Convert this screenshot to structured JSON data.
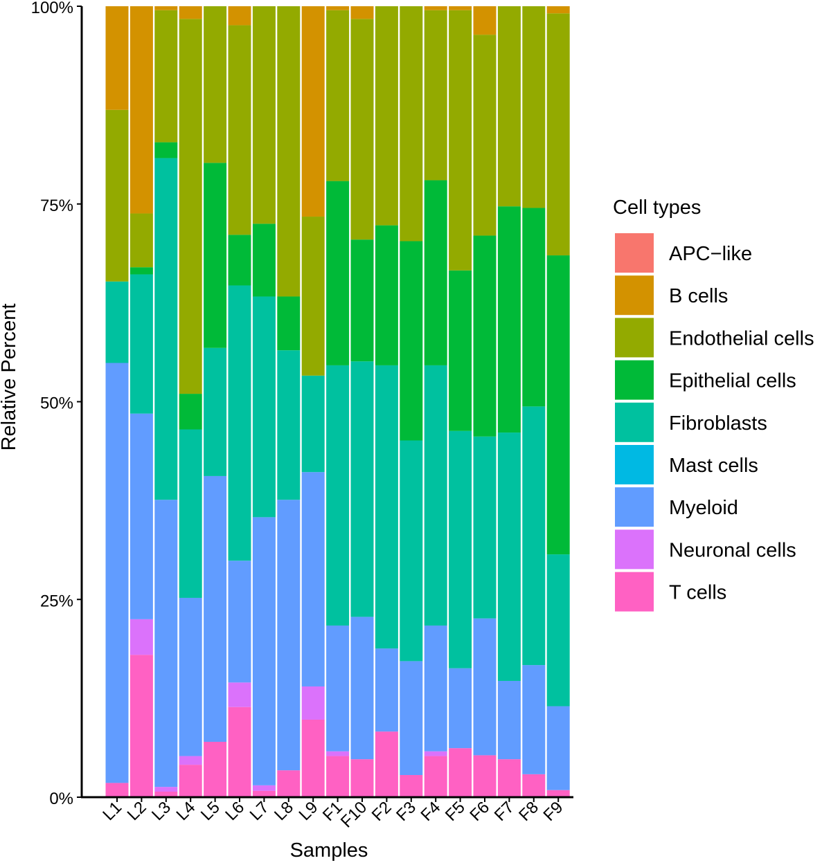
{
  "chart_data": {
    "type": "bar",
    "stacked": true,
    "title": "",
    "xlabel": "Samples",
    "ylabel": "Relative Percent",
    "ylim": [
      0,
      100
    ],
    "yticks": [
      "0%",
      "25%",
      "50%",
      "75%",
      "100%"
    ],
    "grid": false,
    "legend": {
      "title": "Cell types",
      "placement": "right"
    },
    "categories": [
      "L1",
      "L2",
      "L3",
      "L4",
      "L5",
      "L6",
      "L7",
      "L8",
      "L9",
      "F1",
      "F10",
      "F2",
      "F3",
      "F4",
      "F5",
      "F6",
      "F7",
      "F8",
      "F9"
    ],
    "series": [
      {
        "name": "T cells",
        "color": "#FF61C3",
        "values": [
          1.8,
          18.0,
          0.7,
          4.1,
          7.0,
          11.4,
          0.8,
          3.4,
          9.8,
          5.2,
          4.8,
          8.3,
          2.8,
          5.2,
          6.2,
          5.3,
          4.8,
          2.9,
          0.9
        ]
      },
      {
        "name": "Neuronal cells",
        "color": "#DB72FB",
        "values": [
          0,
          4.5,
          0.6,
          1.1,
          0,
          3.1,
          0.7,
          0,
          4.2,
          0.6,
          0,
          0,
          0,
          0.6,
          0,
          0,
          0,
          0,
          0
        ]
      },
      {
        "name": "Myeloid",
        "color": "#619CFF",
        "values": [
          53.1,
          26.0,
          36.3,
          20.0,
          33.6,
          15.4,
          33.9,
          34.2,
          27.1,
          15.9,
          18.0,
          10.5,
          14.4,
          15.9,
          10.1,
          17.3,
          9.9,
          13.8,
          10.6
        ]
      },
      {
        "name": "Mast cells",
        "color": "#00B9E3",
        "values": [
          0,
          0,
          0,
          0,
          0,
          0,
          0,
          0,
          0,
          0,
          0,
          0,
          0,
          0,
          0,
          0,
          0,
          0,
          0
        ]
      },
      {
        "name": "Fibroblasts",
        "color": "#00C19F",
        "values": [
          10.3,
          17.6,
          43.2,
          21.3,
          16.2,
          34.8,
          27.9,
          18.9,
          12.2,
          32.9,
          32.3,
          35.8,
          27.9,
          32.9,
          30.0,
          23.0,
          31.4,
          32.7,
          19.2
        ]
      },
      {
        "name": "Epithelial cells",
        "color": "#00BA38",
        "values": [
          0,
          0.9,
          2.0,
          4.5,
          23.4,
          6.4,
          9.2,
          6.8,
          0,
          23.3,
          15.4,
          17.7,
          25.2,
          23.4,
          20.3,
          25.4,
          28.6,
          25.1,
          37.8
        ]
      },
      {
        "name": "Endothelial cells",
        "color": "#93AA00",
        "values": [
          21.7,
          6.8,
          16.7,
          47.4,
          19.8,
          26.5,
          27.5,
          36.7,
          20.1,
          21.6,
          27.9,
          27.7,
          29.7,
          21.5,
          32.9,
          25.4,
          25.3,
          25.5,
          30.6
        ]
      },
      {
        "name": "B cells",
        "color": "#D39200",
        "values": [
          13.1,
          26.2,
          0.5,
          1.6,
          0,
          2.4,
          0,
          0,
          26.6,
          0.5,
          1.6,
          0,
          0,
          0.5,
          0.5,
          3.6,
          0,
          0,
          0.9
        ]
      },
      {
        "name": "APC−like",
        "color": "#F8766D",
        "values": [
          0,
          0,
          0,
          0,
          0,
          0,
          0,
          0,
          0,
          0,
          0,
          0,
          0,
          0,
          0,
          0,
          0,
          0,
          0
        ]
      }
    ],
    "legend_order": [
      "APC−like",
      "B cells",
      "Endothelial cells",
      "Epithelial cells",
      "Fibroblasts",
      "Mast cells",
      "Myeloid",
      "Neuronal cells",
      "T cells"
    ]
  }
}
